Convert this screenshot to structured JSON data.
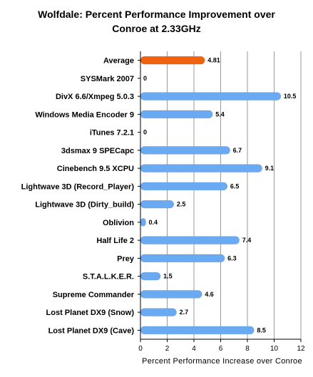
{
  "chart_data": {
    "type": "bar",
    "orientation": "horizontal",
    "title": "Wolfdale: Percent Performance Improvement over\nConroe at 2.33GHz",
    "xlabel": "Percent Performance Increase over Conroe",
    "ylabel": "",
    "xlim": [
      0,
      12
    ],
    "xticks": [
      0,
      2,
      4,
      6,
      8,
      10,
      12
    ],
    "grid": true,
    "legend": "none",
    "categories": [
      "Average",
      "SYSMark 2007",
      "DivX 6.6/Xmpeg 5.0.3",
      "Windows Media Encoder 9",
      "iTunes 7.2.1",
      "3dsmax 9 SPECapc",
      "Cinebench 9.5 XCPU",
      "Lightwave 3D (Record_Player)",
      "Lightwave 3D (Dirty_build)",
      "Oblivion",
      "Half Life 2",
      "Prey",
      "S.T.A.L.K.E.R.",
      "Supreme Commander",
      "Lost Planet DX9 (Snow)",
      "Lost Planet DX9 (Cave)"
    ],
    "values": [
      4.81,
      0,
      10.5,
      5.4,
      0,
      6.7,
      9.1,
      6.5,
      2.5,
      0.4,
      7.4,
      6.3,
      1.5,
      4.6,
      2.7,
      8.5
    ],
    "value_labels": [
      "4.81",
      "0",
      "10.5",
      "5.4",
      "0",
      "6.7",
      "9.1",
      "6.5",
      "2.5",
      "0.4",
      "7.4",
      "6.3",
      "1.5",
      "4.6",
      "2.7",
      "8.5"
    ],
    "highlight_index": 0,
    "colors": {
      "bar": "#6aaaf2",
      "bar_highlight": "#f0620e",
      "grid": "#9a9a9a",
      "axis": "#000000"
    }
  }
}
